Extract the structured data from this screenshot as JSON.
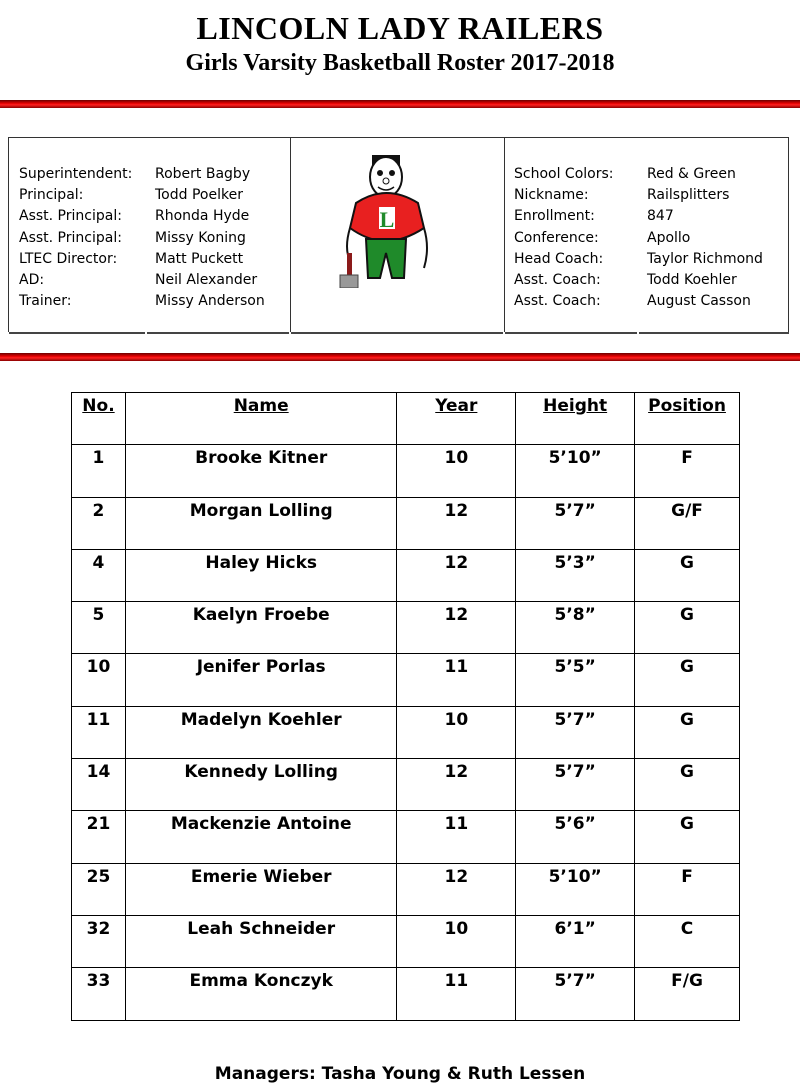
{
  "header": {
    "title": "LINCOLN LADY RAILERS",
    "subtitle": "Girls Varsity Basketball Roster 2017-2018"
  },
  "colors": {
    "accent_red": "#e00000",
    "mascot_green": "#1f8a2a"
  },
  "staff": [
    {
      "label": "Superintendent:",
      "value": "Robert Bagby"
    },
    {
      "label": "Principal:",
      "value": "Todd Poelker"
    },
    {
      "label": "Asst. Principal:",
      "value": "Rhonda Hyde"
    },
    {
      "label": "Asst. Principal:",
      "value": "Missy Koning"
    },
    {
      "label": "LTEC Director:",
      "value": "Matt Puckett"
    },
    {
      "label": "AD:",
      "value": "Neil Alexander"
    },
    {
      "label": "Trainer:",
      "value": "Missy Anderson"
    }
  ],
  "school": [
    {
      "label": "School Colors:",
      "value": "Red & Green"
    },
    {
      "label": "Nickname:",
      "value": "Railsplitters"
    },
    {
      "label": "Enrollment:",
      "value": "847"
    },
    {
      "label": "Conference:",
      "value": "Apollo"
    },
    {
      "label": "Head Coach:",
      "value": "Taylor Richmond"
    },
    {
      "label": "Asst. Coach:",
      "value": "Todd Koehler"
    },
    {
      "label": "Asst. Coach:",
      "value": "August Casson"
    }
  ],
  "logo": {
    "letter": "L"
  },
  "roster": {
    "columns": [
      "No.",
      "Name",
      "Year",
      "Height",
      "Position"
    ],
    "rows": [
      [
        "1",
        "Brooke Kitner",
        "10",
        "5’10”",
        "F"
      ],
      [
        "2",
        "Morgan Lolling",
        "12",
        "5’7”",
        "G/F"
      ],
      [
        "4",
        "Haley Hicks",
        "12",
        "5’3”",
        "G"
      ],
      [
        "5",
        "Kaelyn Froebe",
        "12",
        "5’8”",
        "G"
      ],
      [
        "10",
        "Jenifer Porlas",
        "11",
        "5’5”",
        "G"
      ],
      [
        "11",
        "Madelyn Koehler",
        "10",
        "5’7”",
        "G"
      ],
      [
        "14",
        "Kennedy Lolling",
        "12",
        "5’7”",
        "G"
      ],
      [
        "21",
        "Mackenzie Antoine",
        "11",
        "5’6”",
        "G"
      ],
      [
        "25",
        "Emerie Wieber",
        "12",
        "5’10”",
        "F"
      ],
      [
        "32",
        "Leah Schneider",
        "10",
        "6’1”",
        "C"
      ],
      [
        "33",
        "Emma Konczyk",
        "11",
        "5’7”",
        "F/G"
      ]
    ]
  },
  "managers": "Managers:  Tasha Young & Ruth Lessen"
}
